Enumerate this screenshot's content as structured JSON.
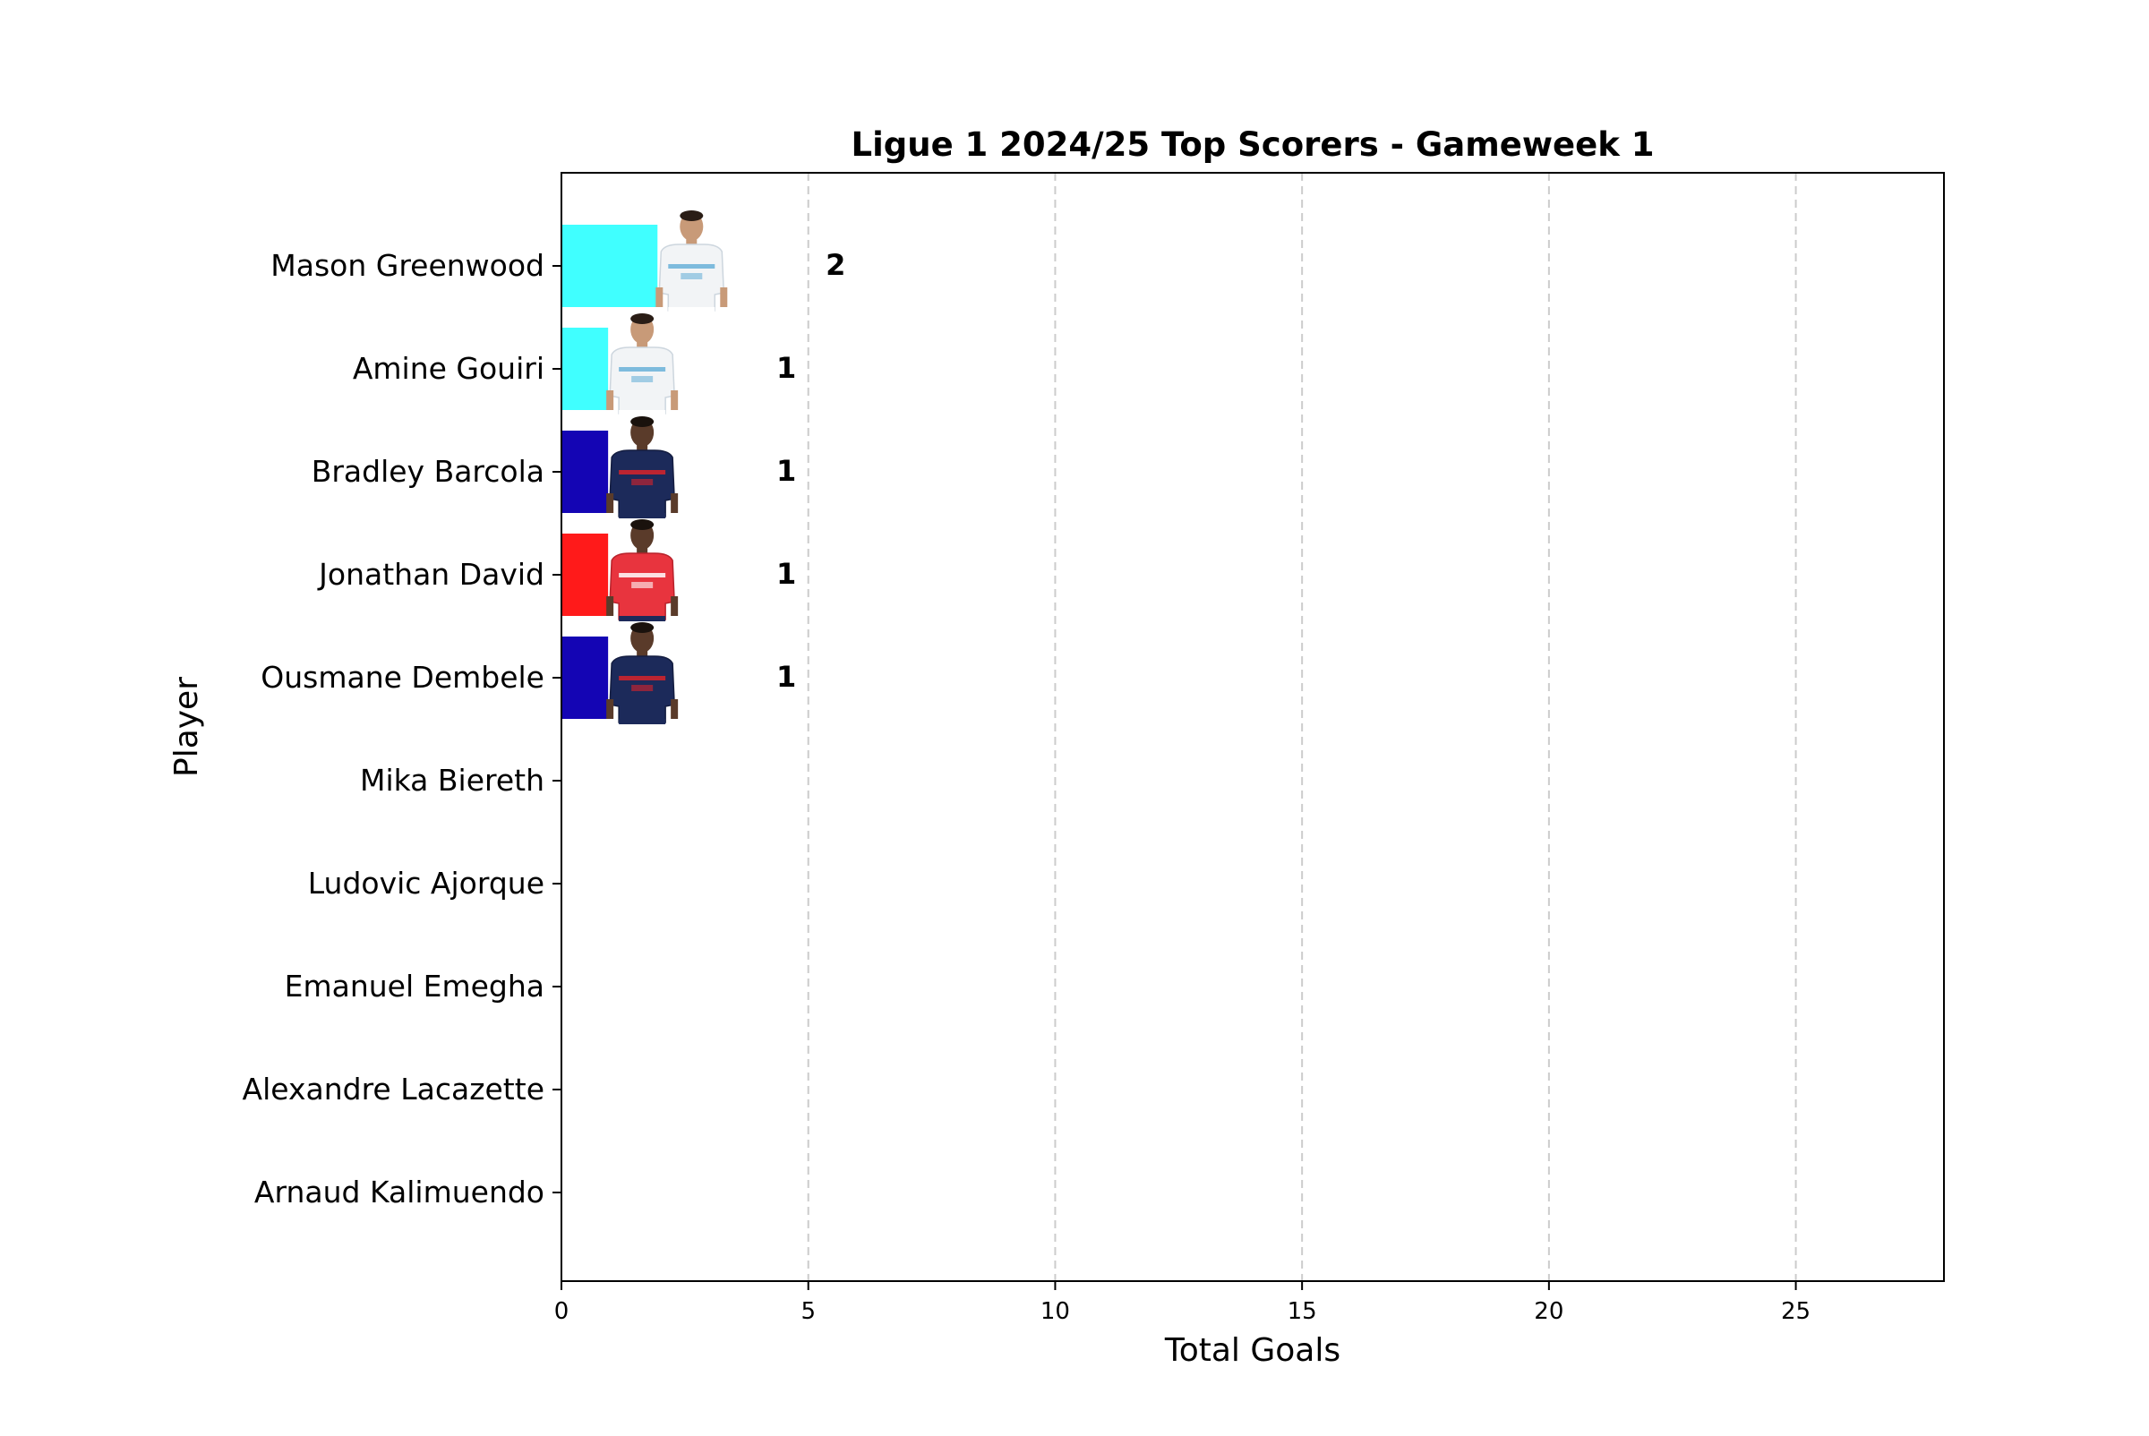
{
  "chart_data": {
    "type": "bar",
    "orientation": "horizontal",
    "title": "Ligue 1 2024/25 Top Scorers - Gameweek 1",
    "xlabel": "Total Goals",
    "ylabel": "Player",
    "xlim": [
      0,
      28
    ],
    "xticks": [
      0,
      5,
      10,
      15,
      20,
      25
    ],
    "grid": "x-dashed",
    "categories": [
      "Mason Greenwood",
      "Amine Gouiri",
      "Bradley Barcola",
      "Jonathan David",
      "Ousmane Dembele",
      "Mika Biereth",
      "Ludovic Ajorque",
      "Emanuel Emegha",
      "Alexandre Lacazette",
      "Arnaud Kalimuendo"
    ],
    "values": [
      2,
      1,
      1,
      1,
      1,
      0,
      0,
      0,
      0,
      0
    ],
    "bar_colors": [
      "#40ffff",
      "#40ffff",
      "#1405b4",
      "#ff1a1a",
      "#1405b4",
      "#40ffff",
      "#40ffff",
      "#40ffff",
      "#40ffff",
      "#40ffff"
    ],
    "player_images": [
      "player-photo-marseille-white-kit",
      "player-photo-marseille-white-kit",
      "player-photo-psg-navy-kit",
      "player-photo-lille-red-kit",
      "player-photo-psg-navy-kit"
    ]
  }
}
